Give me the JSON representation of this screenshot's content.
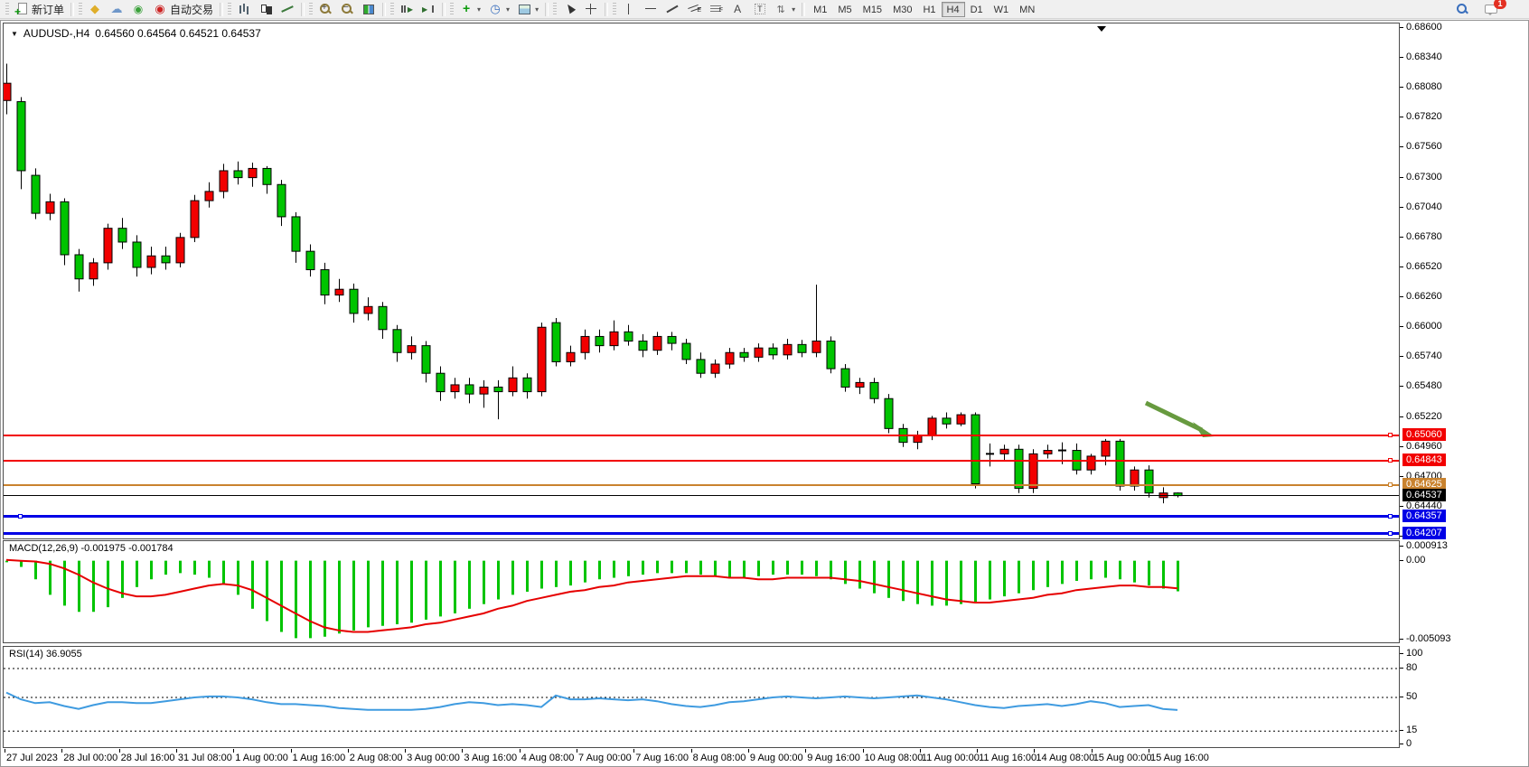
{
  "toolbar": {
    "groups": [
      {
        "items": [
          {
            "name": "new-order",
            "label": "新订单"
          }
        ]
      },
      {
        "items": [
          {
            "name": "market"
          },
          {
            "name": "signals"
          },
          {
            "name": "algo"
          },
          {
            "name": "auto-trading",
            "label": "自动交易"
          }
        ]
      },
      {
        "items": [
          {
            "name": "chart-bars"
          },
          {
            "name": "chart-candles"
          },
          {
            "name": "chart-line"
          }
        ]
      },
      {
        "items": [
          {
            "name": "zoom-in"
          },
          {
            "name": "zoom-out"
          },
          {
            "name": "tile-windows"
          }
        ]
      },
      {
        "items": [
          {
            "name": "auto-scroll"
          },
          {
            "name": "chart-shift"
          }
        ]
      },
      {
        "items": [
          {
            "name": "indicators",
            "dropdown": true
          },
          {
            "name": "periods",
            "dropdown": true
          },
          {
            "name": "templates",
            "dropdown": true
          }
        ]
      },
      {
        "items": [
          {
            "name": "cursor"
          },
          {
            "name": "crosshair"
          }
        ]
      },
      {
        "items": [
          {
            "name": "vertical-line"
          },
          {
            "name": "horizontal-line"
          },
          {
            "name": "trendline"
          },
          {
            "name": "equidistant-channel"
          },
          {
            "name": "fibonacci"
          },
          {
            "name": "text"
          },
          {
            "name": "text-label"
          },
          {
            "name": "arrows",
            "dropdown": true
          }
        ]
      }
    ],
    "timeframes": [
      "M1",
      "M5",
      "M15",
      "M30",
      "H1",
      "H4",
      "D1",
      "W1",
      "MN"
    ],
    "active_timeframe": "H4",
    "right_icons": [
      {
        "name": "search"
      },
      {
        "name": "chat",
        "badge": "1"
      }
    ]
  },
  "chart": {
    "symbol_period": "AUDUSD-,H4",
    "ohlc_text": "0.64560 0.64564 0.64521 0.64537",
    "background": "#ffffff"
  },
  "chart_data": {
    "type": "candlestick",
    "symbol": "AUDUSD",
    "period": "H4",
    "last_ohlc": {
      "open": "0.64560",
      "high": "0.64564",
      "low": "0.64521",
      "close": "0.64537"
    },
    "colors": {
      "up_candle": "#f20000",
      "down_candle": "#00c400",
      "doji": "#000000",
      "wick": "#000000",
      "macd_histogram": "#00c400",
      "macd_signal": "#e60000",
      "rsi_line": "#3f9be0",
      "arrow": "#679a3f"
    },
    "candles_ohlc": [
      [
        0.6797,
        0.6829,
        0.6785,
        0.6812
      ],
      [
        0.6796,
        0.68,
        0.672,
        0.6736
      ],
      [
        0.6732,
        0.6738,
        0.6694,
        0.6699
      ],
      [
        0.6699,
        0.6716,
        0.6693,
        0.6709
      ],
      [
        0.6709,
        0.6712,
        0.6654,
        0.6663
      ],
      [
        0.6663,
        0.6668,
        0.6631,
        0.6642
      ],
      [
        0.6642,
        0.666,
        0.6636,
        0.6656
      ],
      [
        0.6656,
        0.669,
        0.665,
        0.6686
      ],
      [
        0.6686,
        0.6695,
        0.6668,
        0.6674
      ],
      [
        0.6674,
        0.668,
        0.6644,
        0.6652
      ],
      [
        0.6652,
        0.667,
        0.6646,
        0.6662
      ],
      [
        0.6662,
        0.667,
        0.665,
        0.6656
      ],
      [
        0.6656,
        0.6682,
        0.6652,
        0.6678
      ],
      [
        0.6678,
        0.6715,
        0.6674,
        0.671
      ],
      [
        0.671,
        0.6726,
        0.6704,
        0.6718
      ],
      [
        0.6718,
        0.6742,
        0.6712,
        0.6736
      ],
      [
        0.6736,
        0.6744,
        0.6724,
        0.673
      ],
      [
        0.673,
        0.6743,
        0.6722,
        0.6738
      ],
      [
        0.6738,
        0.674,
        0.6716,
        0.6724
      ],
      [
        0.6724,
        0.6728,
        0.6688,
        0.6696
      ],
      [
        0.6696,
        0.67,
        0.6656,
        0.6666
      ],
      [
        0.6666,
        0.6672,
        0.6644,
        0.665
      ],
      [
        0.665,
        0.6656,
        0.662,
        0.6628
      ],
      [
        0.6628,
        0.6642,
        0.6622,
        0.6633
      ],
      [
        0.6633,
        0.6638,
        0.6604,
        0.6612
      ],
      [
        0.6612,
        0.6626,
        0.6606,
        0.6618
      ],
      [
        0.6618,
        0.6622,
        0.659,
        0.6598
      ],
      [
        0.6598,
        0.6602,
        0.657,
        0.6578
      ],
      [
        0.6578,
        0.6592,
        0.6572,
        0.6584
      ],
      [
        0.6584,
        0.6588,
        0.6552,
        0.656
      ],
      [
        0.656,
        0.6566,
        0.6536,
        0.6544
      ],
      [
        0.6544,
        0.6556,
        0.6538,
        0.655
      ],
      [
        0.655,
        0.6556,
        0.6534,
        0.6542
      ],
      [
        0.6542,
        0.6554,
        0.653,
        0.6548
      ],
      [
        0.6548,
        0.6554,
        0.652,
        0.6544
      ],
      [
        0.6544,
        0.6566,
        0.654,
        0.6556
      ],
      [
        0.6556,
        0.656,
        0.6538,
        0.6544
      ],
      [
        0.6544,
        0.6604,
        0.654,
        0.66
      ],
      [
        0.6604,
        0.6608,
        0.6566,
        0.657
      ],
      [
        0.657,
        0.6584,
        0.6566,
        0.6578
      ],
      [
        0.6578,
        0.6598,
        0.6572,
        0.6592
      ],
      [
        0.6592,
        0.6598,
        0.6578,
        0.6584
      ],
      [
        0.6584,
        0.6606,
        0.658,
        0.6596
      ],
      [
        0.6596,
        0.6602,
        0.6584,
        0.6588
      ],
      [
        0.6588,
        0.6594,
        0.6574,
        0.658
      ],
      [
        0.658,
        0.6596,
        0.6576,
        0.6592
      ],
      [
        0.6592,
        0.6596,
        0.658,
        0.6586
      ],
      [
        0.6586,
        0.659,
        0.6568,
        0.6572
      ],
      [
        0.6572,
        0.6578,
        0.6556,
        0.656
      ],
      [
        0.656,
        0.6572,
        0.6556,
        0.6568
      ],
      [
        0.6568,
        0.6582,
        0.6564,
        0.6578
      ],
      [
        0.6578,
        0.6582,
        0.657,
        0.6574
      ],
      [
        0.6574,
        0.6586,
        0.657,
        0.6582
      ],
      [
        0.6582,
        0.6586,
        0.6572,
        0.6576
      ],
      [
        0.6576,
        0.659,
        0.6572,
        0.6585
      ],
      [
        0.6585,
        0.6589,
        0.6574,
        0.6578
      ],
      [
        0.6578,
        0.6637,
        0.6574,
        0.6588
      ],
      [
        0.6588,
        0.6592,
        0.656,
        0.6564
      ],
      [
        0.6564,
        0.6568,
        0.6544,
        0.6548
      ],
      [
        0.6548,
        0.6556,
        0.6542,
        0.6552
      ],
      [
        0.6552,
        0.6556,
        0.6534,
        0.6538
      ],
      [
        0.6538,
        0.6542,
        0.6508,
        0.6512
      ],
      [
        0.6512,
        0.6516,
        0.6496,
        0.65
      ],
      [
        0.65,
        0.651,
        0.6494,
        0.6506
      ],
      [
        0.6506,
        0.6523,
        0.6502,
        0.6521
      ],
      [
        0.6521,
        0.6526,
        0.6512,
        0.6516
      ],
      [
        0.6516,
        0.6526,
        0.6514,
        0.6524
      ],
      [
        0.6524,
        0.6526,
        0.646,
        0.6464
      ],
      [
        0.6489,
        0.6499,
        0.6479,
        0.649
      ],
      [
        0.649,
        0.6498,
        0.6484,
        0.6494
      ],
      [
        0.6494,
        0.6498,
        0.6456,
        0.646
      ],
      [
        0.646,
        0.6494,
        0.6456,
        0.649
      ],
      [
        0.649,
        0.6498,
        0.6486,
        0.6493
      ],
      [
        0.6492,
        0.65,
        0.6481,
        0.6493
      ],
      [
        0.6493,
        0.6499,
        0.6472,
        0.6476
      ],
      [
        0.6476,
        0.649,
        0.6472,
        0.6488
      ],
      [
        0.6488,
        0.6503,
        0.648,
        0.6501
      ],
      [
        0.6501,
        0.6503,
        0.6458,
        0.6462
      ],
      [
        0.6462,
        0.6479,
        0.6458,
        0.6476
      ],
      [
        0.6476,
        0.648,
        0.6452,
        0.6456
      ],
      [
        0.6452,
        0.6461,
        0.6447,
        0.6456
      ],
      [
        0.6456,
        0.64564,
        0.64521,
        0.64537
      ]
    ],
    "hlines": [
      {
        "price": 0.6506,
        "label": "0.65060",
        "color": "#f20000",
        "width": 2,
        "right_handle": true
      },
      {
        "price": 0.64843,
        "label": "0.64843",
        "color": "#f20000",
        "width": 2,
        "right_handle": true
      },
      {
        "price": 0.64625,
        "label": "0.64625",
        "color": "#c9822e",
        "width": 2,
        "right_handle": true
      },
      {
        "price": 0.64537,
        "label": "0.64537",
        "color": "#000000",
        "width": 1,
        "is_current_price": true
      },
      {
        "price": 0.64357,
        "label": "0.64357",
        "color": "#0000e6",
        "width": 3,
        "right_handle": true,
        "left_handle": true
      },
      {
        "price": 0.64207,
        "label": "0.64207",
        "color": "#0000e6",
        "width": 3,
        "right_handle": true
      }
    ],
    "annotation_arrow": {
      "direction": "down-right",
      "color": "#679a3f",
      "tail": [
        1264,
        420
      ],
      "tip": [
        1340,
        457
      ]
    },
    "price_axis_ticks": [
      "0.68600",
      "0.68340",
      "0.68080",
      "0.67820",
      "0.67560",
      "0.67300",
      "0.67040",
      "0.66780",
      "0.66520",
      "0.66260",
      "0.66000",
      "0.65740",
      "0.65480",
      "0.65220",
      "0.64960",
      "0.64700",
      "0.64440",
      "0.64180"
    ],
    "time_axis_labels": [
      "27 Jul 2023",
      "28 Jul 00:00",
      "28 Jul 16:00",
      "31 Jul 08:00",
      "1 Aug 00:00",
      "1 Aug 16:00",
      "2 Aug 08:00",
      "3 Aug 00:00",
      "3 Aug 16:00",
      "4 Aug 08:00",
      "7 Aug 00:00",
      "7 Aug 16:00",
      "8 Aug 08:00",
      "9 Aug 00:00",
      "9 Aug 16:00",
      "10 Aug 08:00",
      "11 Aug 00:00",
      "11 Aug 16:00",
      "14 Aug 08:00",
      "15 Aug 00:00",
      "15 Aug 16:00"
    ],
    "macd": {
      "label": "MACD(12,26,9)",
      "current_values_text": "-0.001975 -0.001784",
      "axis_labels": [
        "0.000913",
        "0.00",
        "-0.005093"
      ],
      "axis_max": 0.000913,
      "axis_min": -0.005093,
      "values_scale": 0.001,
      "histogram": [
        -0.1,
        -0.4,
        -1.2,
        -2.2,
        -2.9,
        -3.3,
        -3.3,
        -3.0,
        -2.4,
        -1.7,
        -1.2,
        -0.9,
        -0.8,
        -0.9,
        -1.1,
        -1.5,
        -2.2,
        -3.1,
        -3.9,
        -4.6,
        -5.0,
        -5.0,
        -4.9,
        -4.7,
        -4.5,
        -4.3,
        -4.2,
        -4.1,
        -4.0,
        -3.8,
        -3.6,
        -3.4,
        -3.1,
        -2.8,
        -2.5,
        -2.2,
        -2.0,
        -1.8,
        -1.7,
        -1.6,
        -1.4,
        -1.2,
        -1.1,
        -1.0,
        -0.9,
        -0.8,
        -0.8,
        -0.8,
        -0.9,
        -1.0,
        -1.1,
        -1.1,
        -1.0,
        -0.9,
        -0.9,
        -0.9,
        -1.0,
        -1.2,
        -1.5,
        -1.8,
        -2.1,
        -2.4,
        -2.6,
        -2.8,
        -2.9,
        -2.9,
        -2.8,
        -2.7,
        -2.5,
        -2.3,
        -2.1,
        -1.9,
        -1.7,
        -1.5,
        -1.3,
        -1.2,
        -1.1,
        -1.2,
        -1.4,
        -1.6,
        -1.8,
        -1.975
      ],
      "signal": [
        0.05,
        0,
        -0.05,
        -0.2,
        -0.5,
        -0.9,
        -1.4,
        -1.8,
        -2.1,
        -2.3,
        -2.3,
        -2.2,
        -2.0,
        -1.8,
        -1.6,
        -1.5,
        -1.6,
        -1.9,
        -2.4,
        -2.9,
        -3.4,
        -3.9,
        -4.3,
        -4.5,
        -4.6,
        -4.6,
        -4.5,
        -4.4,
        -4.3,
        -4.1,
        -4.0,
        -3.8,
        -3.6,
        -3.4,
        -3.1,
        -2.9,
        -2.6,
        -2.4,
        -2.2,
        -2.0,
        -1.9,
        -1.7,
        -1.6,
        -1.4,
        -1.3,
        -1.2,
        -1.1,
        -1.0,
        -1.0,
        -1.0,
        -1.1,
        -1.1,
        -1.2,
        -1.2,
        -1.1,
        -1.1,
        -1.1,
        -1.1,
        -1.2,
        -1.3,
        -1.5,
        -1.7,
        -1.9,
        -2.1,
        -2.3,
        -2.5,
        -2.6,
        -2.7,
        -2.7,
        -2.6,
        -2.5,
        -2.4,
        -2.2,
        -2.1,
        -1.9,
        -1.8,
        -1.7,
        -1.6,
        -1.6,
        -1.7,
        -1.7,
        -1.784
      ]
    },
    "rsi": {
      "label": "RSI(14)",
      "current_value_text": "36.9055",
      "axis_labels": [
        "100",
        "80",
        "50",
        "15",
        "0"
      ],
      "levels": [
        80,
        50,
        15
      ],
      "series": [
        55,
        48,
        44,
        45,
        41,
        38,
        42,
        45,
        45,
        44,
        44,
        46,
        48,
        50,
        51,
        51,
        50,
        48,
        45,
        43,
        43,
        42,
        41,
        39,
        38,
        37,
        37,
        37,
        37,
        38,
        40,
        43,
        45,
        44,
        42,
        43,
        42,
        40,
        52,
        48,
        48,
        49,
        48,
        47,
        48,
        46,
        43,
        41,
        40,
        42,
        45,
        46,
        48,
        50,
        51,
        50,
        49,
        50,
        51,
        50,
        49,
        50,
        51,
        52,
        50,
        48,
        45,
        42,
        40,
        39,
        41,
        42,
        43,
        41,
        43,
        46,
        44,
        40,
        41,
        42,
        38,
        36.9
      ]
    }
  }
}
